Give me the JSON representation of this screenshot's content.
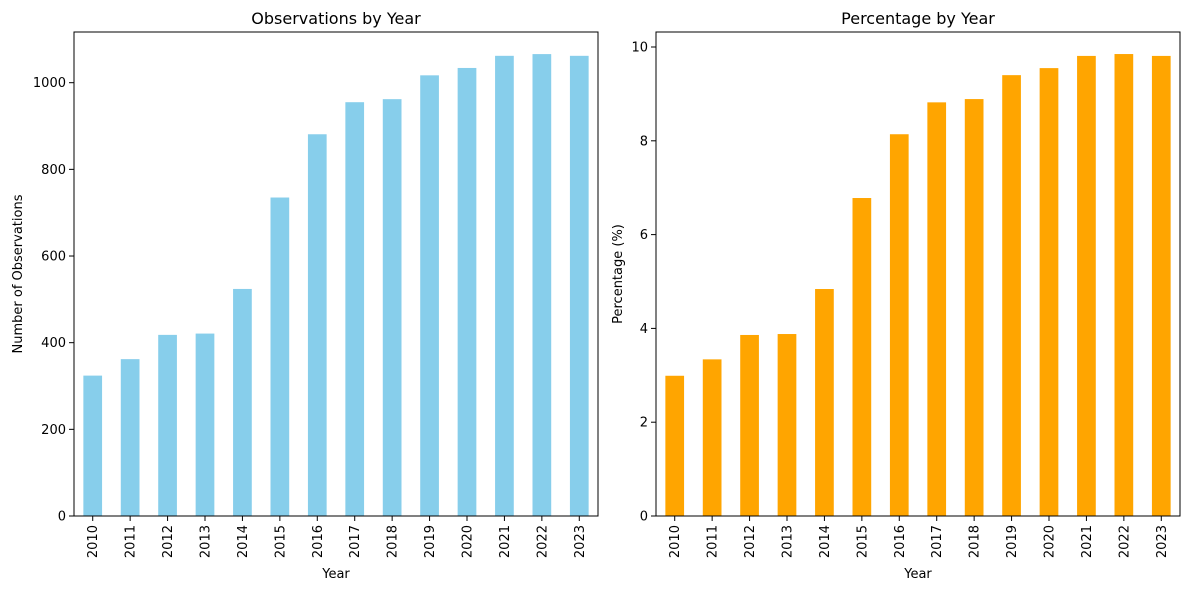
{
  "chart_data": [
    {
      "type": "bar",
      "title": "Observations by Year",
      "xlabel": "Year",
      "ylabel": "Number of Observations",
      "categories": [
        "2010",
        "2011",
        "2012",
        "2013",
        "2014",
        "2015",
        "2016",
        "2017",
        "2018",
        "2019",
        "2020",
        "2021",
        "2022",
        "2023"
      ],
      "values": [
        324,
        362,
        418,
        421,
        524,
        735,
        881,
        955,
        962,
        1017,
        1034,
        1062,
        1066,
        1062
      ],
      "ylim": [
        0,
        1117
      ],
      "yticks": [
        0,
        200,
        400,
        600,
        800,
        1000
      ],
      "color": "#87CEEB",
      "grid": false
    },
    {
      "type": "bar",
      "title": "Percentage by Year",
      "xlabel": "Year",
      "ylabel": "Percentage (%)",
      "categories": [
        "2010",
        "2011",
        "2012",
        "2013",
        "2014",
        "2015",
        "2016",
        "2017",
        "2018",
        "2019",
        "2020",
        "2021",
        "2022",
        "2023"
      ],
      "values": [
        2.99,
        3.34,
        3.86,
        3.88,
        4.84,
        6.78,
        8.14,
        8.82,
        8.89,
        9.4,
        9.55,
        9.81,
        9.85,
        9.81
      ],
      "ylim": [
        0,
        10.32
      ],
      "yticks": [
        0,
        2,
        4,
        6,
        8,
        10
      ],
      "color": "#FFA500",
      "grid": false
    }
  ]
}
